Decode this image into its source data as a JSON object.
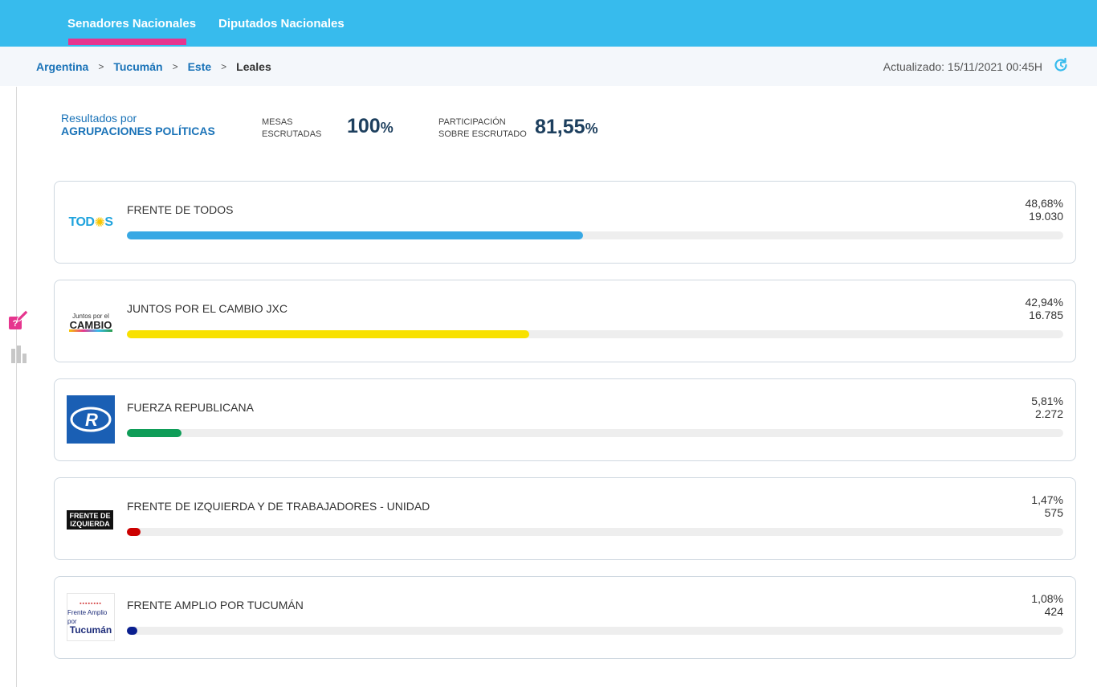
{
  "nav": {
    "tabs": [
      {
        "label": "Senadores Nacionales",
        "active": true
      },
      {
        "label": "Diputados Nacionales",
        "active": false
      }
    ]
  },
  "breadcrumb": {
    "items": [
      "Argentina",
      "Tucumán",
      "Este"
    ],
    "current": "Leales",
    "separator": ">"
  },
  "updated": "Actualizado: 15/11/2021 00:45H",
  "summary": {
    "results_by_line1": "Resultados por",
    "results_by_line2": "AGRUPACIONES POLÍTICAS",
    "mesas_label_line1": "MESAS",
    "mesas_label_line2": "ESCRUTADAS",
    "mesas_value": "100",
    "mesas_unit": "%",
    "participacion_label_line1": "PARTICIPACIÓN",
    "participacion_label_line2": "SOBRE ESCRUTADO",
    "participacion_value": "81,55",
    "participacion_unit": "%"
  },
  "parties": [
    {
      "name": "FRENTE DE TODOS",
      "percent": "48,68%",
      "votes": "19.030",
      "share": 48.68,
      "color": "#37a8e4",
      "logo_text": "TOD",
      "logo_text2": "S"
    },
    {
      "name": "JUNTOS POR EL CAMBIO JXC",
      "percent": "42,94%",
      "votes": "16.785",
      "share": 42.94,
      "color": "#f8e100",
      "logo_text": "Juntos por el",
      "logo_text2": "CAMBIO"
    },
    {
      "name": "FUERZA REPUBLICANA",
      "percent": "5,81%",
      "votes": "2.272",
      "share": 5.81,
      "color": "#0f9d58",
      "logo_text": "R"
    },
    {
      "name": "FRENTE DE IZQUIERDA Y DE TRABAJADORES - UNIDAD",
      "percent": "1,47%",
      "votes": "575",
      "share": 1.47,
      "color": "#cc0000",
      "logo_text": "FRENTE DE",
      "logo_text2": "IZQUIERDA"
    },
    {
      "name": "FRENTE AMPLIO POR TUCUMÁN",
      "percent": "1,08%",
      "votes": "424",
      "share": 1.08,
      "color": "#0a1f8f",
      "logo_text": "Frente Amplio por",
      "logo_text2": "Tucumán"
    }
  ],
  "colors": {
    "topbar": "#37bbed",
    "active_tab_underline": "#e6358e",
    "link": "#1a73b8",
    "stat_value": "#1d3f5e"
  },
  "icons": [
    "refresh-icon",
    "ballot-icon",
    "bar-chart-icon"
  ]
}
